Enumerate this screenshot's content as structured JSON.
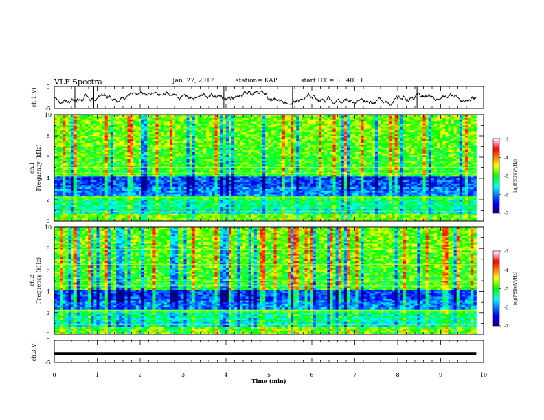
{
  "header": {
    "title": "VLF Spectra",
    "date": "Jan. 27, 2017",
    "station": "station= KAP",
    "start": "start UT = 3 : 40 : 1"
  },
  "chart_data": [
    {
      "type": "line",
      "panel": "ch1-waveform",
      "ylabel": "ch.1(V)",
      "ylim": [
        -5,
        5
      ],
      "yticks": [
        "5",
        "-5"
      ],
      "xlim": [
        0,
        10
      ],
      "series": [
        {
          "values_note_free": true,
          "x_end": 9.83,
          "mean": 0.0,
          "range": [
            -5,
            5
          ]
        }
      ]
    },
    {
      "type": "heatmap",
      "panel": "ch1-spectrogram",
      "ylabel_line1": "ch.1",
      "ylabel_line2": "Frequency (kHz)",
      "ylim": [
        0,
        10
      ],
      "yticks": [
        "0",
        "2",
        "4",
        "6",
        "8",
        "10"
      ],
      "xlim": [
        0,
        10
      ],
      "x_end": 9.83,
      "colorbar": {
        "label": "log(PSD)(V²/Hz)",
        "min": -7,
        "max": -3,
        "ticks": [
          "-3",
          "-4",
          "-5",
          "-6",
          "-7"
        ]
      }
    },
    {
      "type": "heatmap",
      "panel": "ch2-spectrogram",
      "ylabel_line1": "ch.2",
      "ylabel_line2": "Frequency (kHz)",
      "ylim": [
        0,
        10
      ],
      "yticks": [
        "0",
        "2",
        "4",
        "6",
        "8",
        "10"
      ],
      "xlim": [
        0,
        10
      ],
      "x_end": 9.83,
      "colorbar": {
        "label": "log(PSD)(V²/Hz)",
        "min": -7,
        "max": -3,
        "ticks": [
          "-3",
          "-4",
          "-5",
          "-6",
          "-7"
        ]
      }
    },
    {
      "type": "line",
      "panel": "ch3-waveform",
      "ylabel": "ch.3(V)",
      "ylim": [
        -5,
        5
      ],
      "yticks": [
        "5",
        "-5"
      ],
      "xlim": [
        0,
        10
      ],
      "series": [
        {
          "constant": -1.0,
          "x_end": 9.83
        }
      ]
    }
  ],
  "xaxis": {
    "label": "Time (min)",
    "ticks": [
      "0",
      "1",
      "2",
      "3",
      "4",
      "5",
      "6",
      "7",
      "8",
      "9",
      "10"
    ]
  }
}
